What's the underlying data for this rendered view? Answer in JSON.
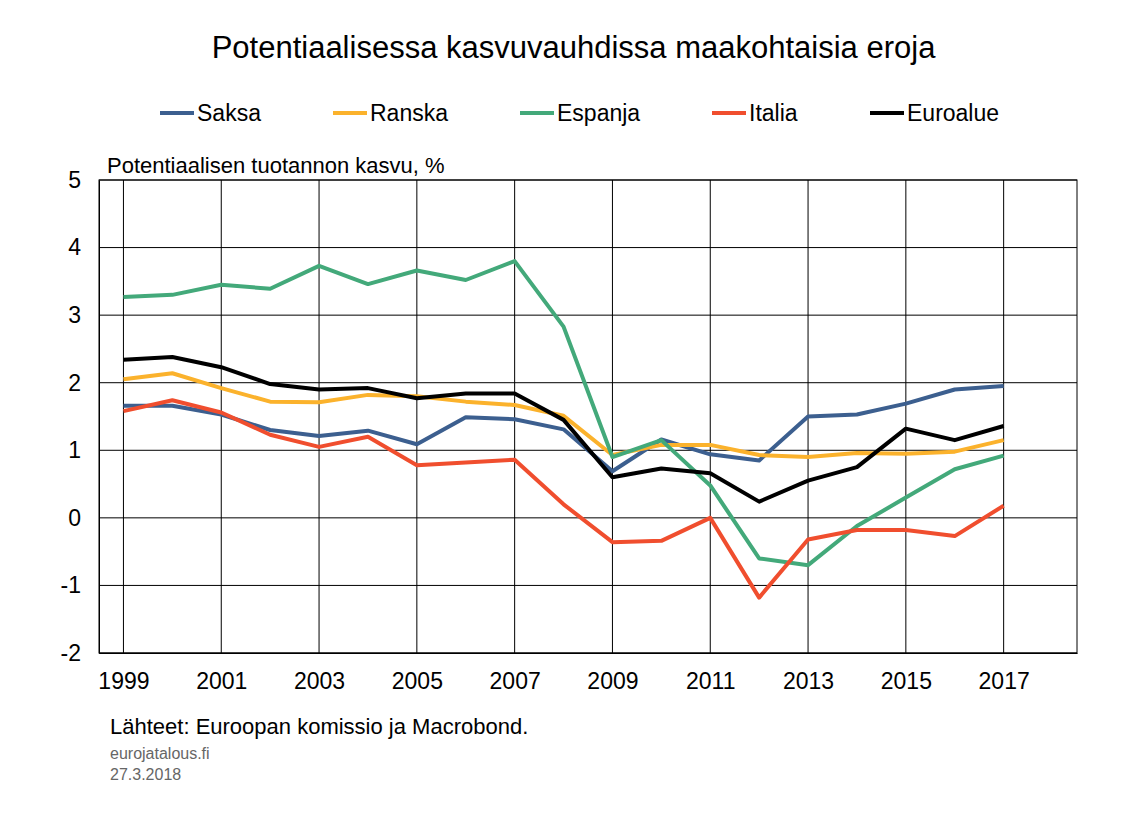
{
  "chart_data": {
    "type": "line",
    "title": "Potentiaalisessa kasvuvauhdissa maakohtaisia eroja",
    "y_label": "Potentiaalisen tuotannon kasvu, %",
    "notes": [
      "Lähteet: Euroopan komissio ja Macrobond.",
      "eurojatalous.fi",
      "27.3.2018"
    ],
    "x": [
      1999,
      2000,
      2001,
      2002,
      2003,
      2004,
      2005,
      2006,
      2007,
      2008,
      2009,
      2010,
      2011,
      2012,
      2013,
      2014,
      2015,
      2016,
      2017
    ],
    "xlim": [
      1998.5,
      2018.5
    ],
    "xticks": [
      1999,
      2001,
      2003,
      2005,
      2007,
      2009,
      2011,
      2013,
      2015,
      2017
    ],
    "ylim": [
      -2,
      5
    ],
    "yticks": [
      -2,
      -1,
      0,
      1,
      2,
      3,
      4,
      5
    ],
    "grid": true,
    "legend": "top",
    "series": [
      {
        "name": "Saksa",
        "color": "#3c5f8f",
        "values": [
          1.66,
          1.66,
          1.53,
          1.3,
          1.21,
          1.29,
          1.09,
          1.49,
          1.46,
          1.31,
          0.69,
          1.16,
          0.94,
          0.85,
          1.5,
          1.53,
          1.69,
          1.9,
          1.95
        ]
      },
      {
        "name": "Ranska",
        "color": "#fbb22c",
        "values": [
          2.05,
          2.14,
          1.92,
          1.72,
          1.71,
          1.82,
          1.8,
          1.72,
          1.67,
          1.51,
          0.93,
          1.08,
          1.08,
          0.93,
          0.9,
          0.96,
          0.95,
          0.98,
          1.15
        ]
      },
      {
        "name": "Espanja",
        "color": "#43a97a",
        "values": [
          3.27,
          3.3,
          3.45,
          3.39,
          3.73,
          3.46,
          3.66,
          3.52,
          3.8,
          2.83,
          0.9,
          1.15,
          0.48,
          -0.6,
          -0.7,
          -0.12,
          0.3,
          0.72,
          0.92
        ]
      },
      {
        "name": "Italia",
        "color": "#f04e2e",
        "values": [
          1.58,
          1.74,
          1.56,
          1.23,
          1.05,
          1.2,
          0.78,
          0.82,
          0.86,
          0.2,
          -0.36,
          -0.34,
          0.0,
          -1.18,
          -0.32,
          -0.18,
          -0.18,
          -0.27,
          0.18
        ]
      },
      {
        "name": "Euroalue",
        "color": "#000000",
        "values": [
          2.34,
          2.38,
          2.23,
          1.98,
          1.9,
          1.92,
          1.77,
          1.84,
          1.84,
          1.45,
          0.6,
          0.73,
          0.66,
          0.24,
          0.55,
          0.75,
          1.32,
          1.15,
          1.36
        ]
      }
    ]
  }
}
